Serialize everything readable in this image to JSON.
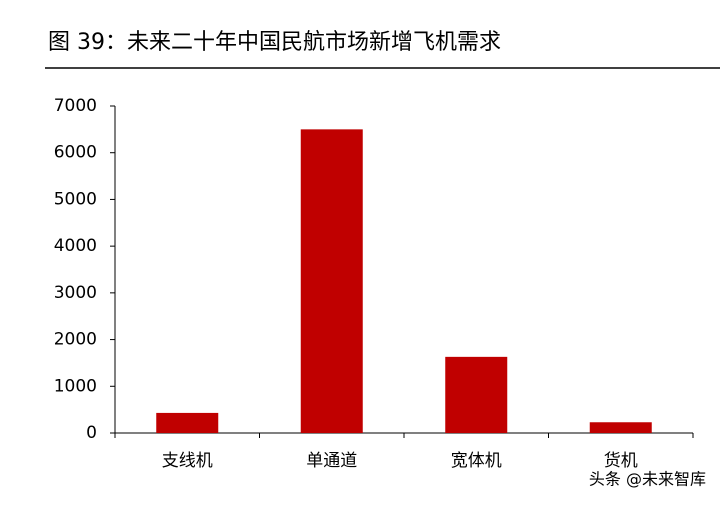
{
  "chart_data": {
    "type": "bar",
    "title": "图 39：未来二十年中国民航市场新增飞机需求",
    "categories": [
      "支线机",
      "单通道",
      "宽体机",
      "货机"
    ],
    "values": [
      430,
      6500,
      1630,
      230
    ],
    "color": "#c00000",
    "ylim": [
      0,
      7000
    ],
    "yticks": [
      0,
      1000,
      2000,
      3000,
      4000,
      5000,
      6000,
      7000
    ],
    "grid": false,
    "watermark": "头条 @未来智库"
  }
}
